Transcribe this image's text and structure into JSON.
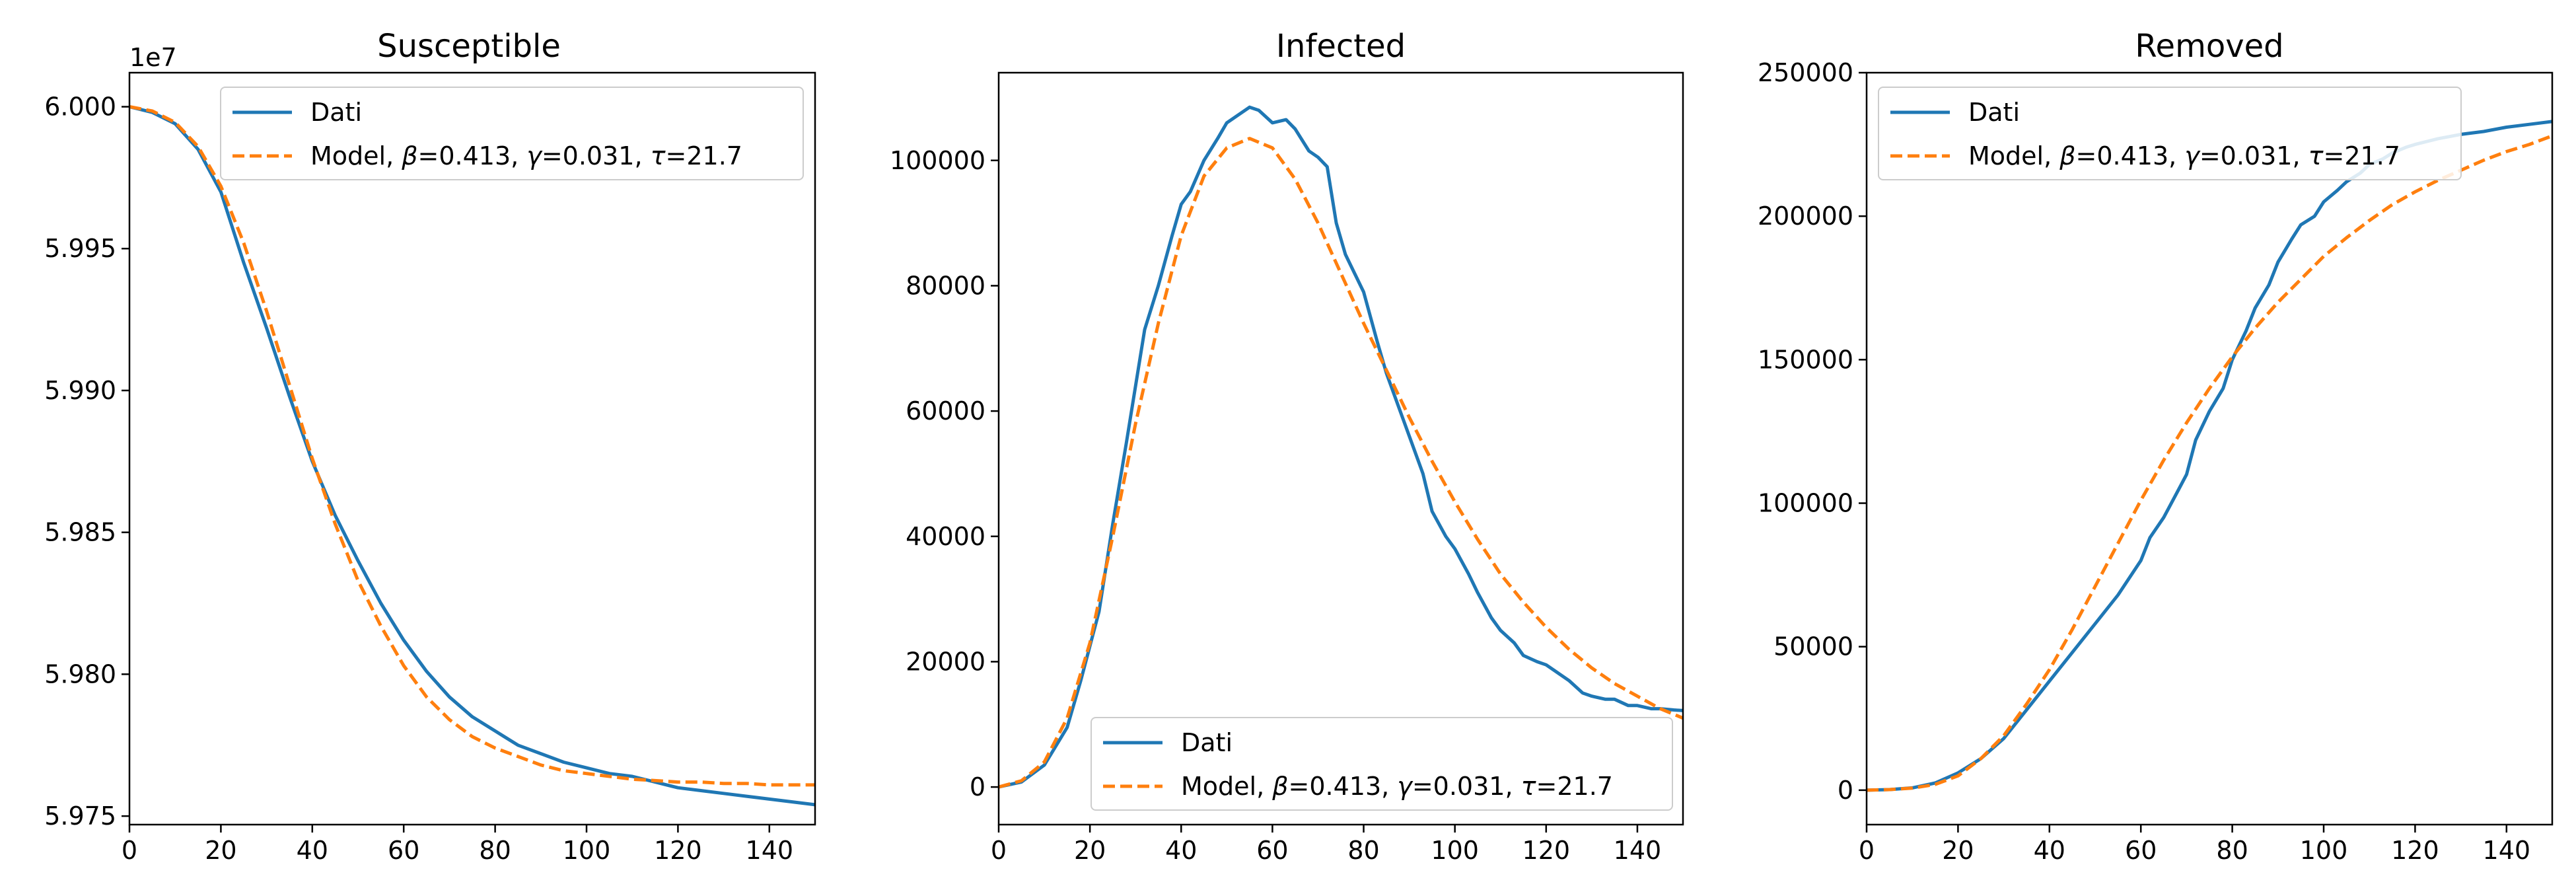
{
  "chart_data": [
    {
      "type": "line",
      "title": "Susceptible",
      "offset_text": "1e7",
      "xlabel": "",
      "ylabel": "",
      "xlim": [
        0,
        150
      ],
      "ylim": [
        59747000,
        60012000
      ],
      "x_ticks": [
        0,
        20,
        40,
        60,
        80,
        100,
        120,
        140
      ],
      "y_ticks": [
        59750000,
        59800000,
        59850000,
        59900000,
        59950000,
        60000000
      ],
      "y_tick_labels": [
        "5.975",
        "5.980",
        "5.985",
        "5.990",
        "5.995",
        "6.000"
      ],
      "grid": false,
      "legend": "top-right",
      "series": [
        {
          "name": "Dati",
          "color": "#1f77b4",
          "style": "solid",
          "x": [
            0,
            5,
            10,
            15,
            20,
            25,
            30,
            35,
            40,
            45,
            50,
            55,
            60,
            65,
            70,
            75,
            80,
            85,
            90,
            95,
            100,
            105,
            110,
            115,
            120,
            125,
            130,
            135,
            140,
            145,
            150
          ],
          "y": [
            60000000,
            59998000,
            59994000,
            59985000,
            59970000,
            59945000,
            59922000,
            59898000,
            59875000,
            59856000,
            59840000,
            59825000,
            59812000,
            59801000,
            59792000,
            59785000,
            59780000,
            59775000,
            59772000,
            59769000,
            59767000,
            59765000,
            59764000,
            59762000,
            59760000,
            59759000,
            59758000,
            59757000,
            59756000,
            59755000,
            59754000
          ]
        },
        {
          "name": "Model, β=0.413, γ=0.031, τ=21.7",
          "color": "#ff7f0e",
          "style": "dashed",
          "x": [
            0,
            5,
            10,
            15,
            20,
            25,
            30,
            35,
            40,
            45,
            50,
            55,
            60,
            65,
            70,
            75,
            80,
            85,
            90,
            95,
            100,
            105,
            110,
            115,
            120,
            125,
            130,
            135,
            140,
            145,
            150
          ],
          "y": [
            60000000,
            59998500,
            59994500,
            59986000,
            59972000,
            59952000,
            59928000,
            59902000,
            59876000,
            59853000,
            59833000,
            59817000,
            59803000,
            59792000,
            59784000,
            59778000,
            59774000,
            59771000,
            59768000,
            59766000,
            59765000,
            59764000,
            59763000,
            59762500,
            59762000,
            59762000,
            59761500,
            59761500,
            59761000,
            59761000,
            59761000
          ]
        }
      ]
    },
    {
      "type": "line",
      "title": "Infected",
      "xlabel": "",
      "ylabel": "",
      "xlim": [
        0,
        150
      ],
      "ylim": [
        -6000,
        114000
      ],
      "x_ticks": [
        0,
        20,
        40,
        60,
        80,
        100,
        120,
        140
      ],
      "y_ticks": [
        0,
        20000,
        40000,
        60000,
        80000,
        100000
      ],
      "grid": false,
      "legend": "bottom-right",
      "series": [
        {
          "name": "Dati",
          "color": "#1f77b4",
          "style": "solid",
          "x": [
            0,
            5,
            10,
            15,
            18,
            22,
            25,
            28,
            32,
            35,
            38,
            40,
            42,
            45,
            48,
            50,
            52,
            55,
            57,
            60,
            63,
            65,
            68,
            70,
            72,
            74,
            76,
            78,
            80,
            83,
            85,
            88,
            90,
            93,
            95,
            98,
            100,
            103,
            105,
            108,
            110,
            113,
            115,
            118,
            120,
            123,
            125,
            128,
            130,
            133,
            135,
            138,
            140,
            143,
            145,
            148,
            150
          ],
          "y": [
            0,
            800,
            3500,
            9500,
            17000,
            28000,
            42000,
            55000,
            73000,
            80000,
            88000,
            93000,
            95000,
            100000,
            103500,
            106000,
            107000,
            108500,
            108000,
            106000,
            106500,
            105000,
            101500,
            100500,
            99000,
            90000,
            85000,
            82000,
            79000,
            71000,
            66000,
            60000,
            56000,
            50000,
            44000,
            40000,
            38000,
            34000,
            31000,
            27000,
            25000,
            23000,
            21000,
            20000,
            19500,
            18000,
            17000,
            15000,
            14500,
            14000,
            14000,
            13000,
            13000,
            12500,
            12500,
            12300,
            12200
          ]
        },
        {
          "name": "Model, β=0.413, γ=0.031, τ=21.7",
          "color": "#ff7f0e",
          "style": "dashed",
          "x": [
            0,
            5,
            10,
            15,
            20,
            25,
            30,
            35,
            40,
            45,
            50,
            55,
            60,
            65,
            70,
            75,
            80,
            85,
            90,
            95,
            100,
            105,
            110,
            115,
            120,
            125,
            130,
            135,
            140,
            145,
            150
          ],
          "y": [
            0,
            1000,
            4000,
            11000,
            23000,
            40000,
            58000,
            74000,
            88000,
            97500,
            102000,
            103500,
            102000,
            97000,
            90000,
            82000,
            74000,
            66500,
            59000,
            52000,
            45500,
            39500,
            34000,
            29500,
            25500,
            22000,
            19000,
            16500,
            14500,
            12500,
            11000
          ]
        }
      ]
    },
    {
      "type": "line",
      "title": "Removed",
      "xlabel": "",
      "ylabel": "",
      "xlim": [
        0,
        150
      ],
      "ylim": [
        -12000,
        250000
      ],
      "x_ticks": [
        0,
        20,
        40,
        60,
        80,
        100,
        120,
        140
      ],
      "y_ticks": [
        0,
        50000,
        100000,
        150000,
        200000,
        250000
      ],
      "grid": false,
      "legend": "top-left",
      "series": [
        {
          "name": "Dati",
          "color": "#1f77b4",
          "style": "solid",
          "x": [
            0,
            5,
            10,
            15,
            20,
            25,
            30,
            35,
            40,
            45,
            50,
            55,
            60,
            62,
            65,
            68,
            70,
            72,
            75,
            78,
            80,
            83,
            85,
            88,
            90,
            93,
            95,
            98,
            100,
            103,
            105,
            108,
            110,
            113,
            115,
            118,
            120,
            125,
            130,
            135,
            140,
            145,
            150
          ],
          "y": [
            0,
            200,
            800,
            2500,
            6000,
            11000,
            18000,
            28000,
            38000,
            48000,
            58000,
            68000,
            80000,
            88000,
            95000,
            104000,
            110000,
            122000,
            132000,
            140000,
            150000,
            160000,
            168000,
            176000,
            184000,
            192000,
            197000,
            200000,
            205000,
            209000,
            212000,
            215000,
            218000,
            220000,
            222000,
            224000,
            225000,
            227000,
            228500,
            229500,
            231000,
            232000,
            233000
          ]
        },
        {
          "name": "Model, β=0.413, γ=0.031, τ=21.7",
          "color": "#ff7f0e",
          "style": "dashed",
          "x": [
            0,
            5,
            10,
            15,
            20,
            25,
            30,
            35,
            40,
            45,
            50,
            55,
            60,
            65,
            70,
            75,
            80,
            85,
            90,
            95,
            100,
            105,
            110,
            115,
            120,
            125,
            130,
            135,
            140,
            145,
            150
          ],
          "y": [
            0,
            200,
            700,
            2000,
            5000,
            11000,
            19000,
            30000,
            42000,
            56000,
            71000,
            86000,
            101000,
            115000,
            128000,
            140000,
            151000,
            161000,
            170000,
            178000,
            186000,
            192500,
            198500,
            204000,
            208500,
            212500,
            216000,
            219500,
            222500,
            225000,
            228000
          ]
        }
      ]
    }
  ]
}
